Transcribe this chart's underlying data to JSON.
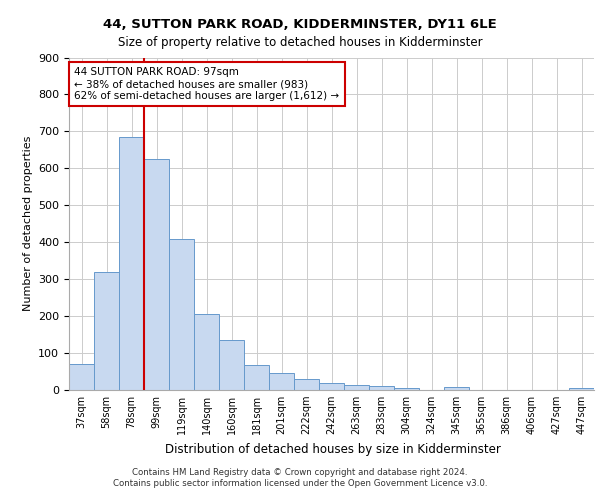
{
  "title1": "44, SUTTON PARK ROAD, KIDDERMINSTER, DY11 6LE",
  "title2": "Size of property relative to detached houses in Kidderminster",
  "xlabel": "Distribution of detached houses by size in Kidderminster",
  "ylabel": "Number of detached properties",
  "categories": [
    "37sqm",
    "58sqm",
    "78sqm",
    "99sqm",
    "119sqm",
    "140sqm",
    "160sqm",
    "181sqm",
    "201sqm",
    "222sqm",
    "242sqm",
    "263sqm",
    "283sqm",
    "304sqm",
    "324sqm",
    "345sqm",
    "365sqm",
    "386sqm",
    "406sqm",
    "427sqm",
    "447sqm"
  ],
  "values": [
    70,
    320,
    685,
    625,
    410,
    207,
    135,
    67,
    45,
    30,
    20,
    13,
    10,
    5,
    0,
    7,
    0,
    0,
    0,
    0,
    5
  ],
  "bar_color": "#c8d9f0",
  "bar_edge_color": "#6699cc",
  "vline_color": "#cc0000",
  "annotation_text": "44 SUTTON PARK ROAD: 97sqm\n← 38% of detached houses are smaller (983)\n62% of semi-detached houses are larger (1,612) →",
  "annotation_box_color": "#ffffff",
  "annotation_box_edge": "#cc0000",
  "ylim": [
    0,
    900
  ],
  "yticks": [
    0,
    100,
    200,
    300,
    400,
    500,
    600,
    700,
    800,
    900
  ],
  "footer1": "Contains HM Land Registry data © Crown copyright and database right 2024.",
  "footer2": "Contains public sector information licensed under the Open Government Licence v3.0.",
  "bg_color": "#ffffff",
  "grid_color": "#cccccc",
  "vline_index": 3
}
